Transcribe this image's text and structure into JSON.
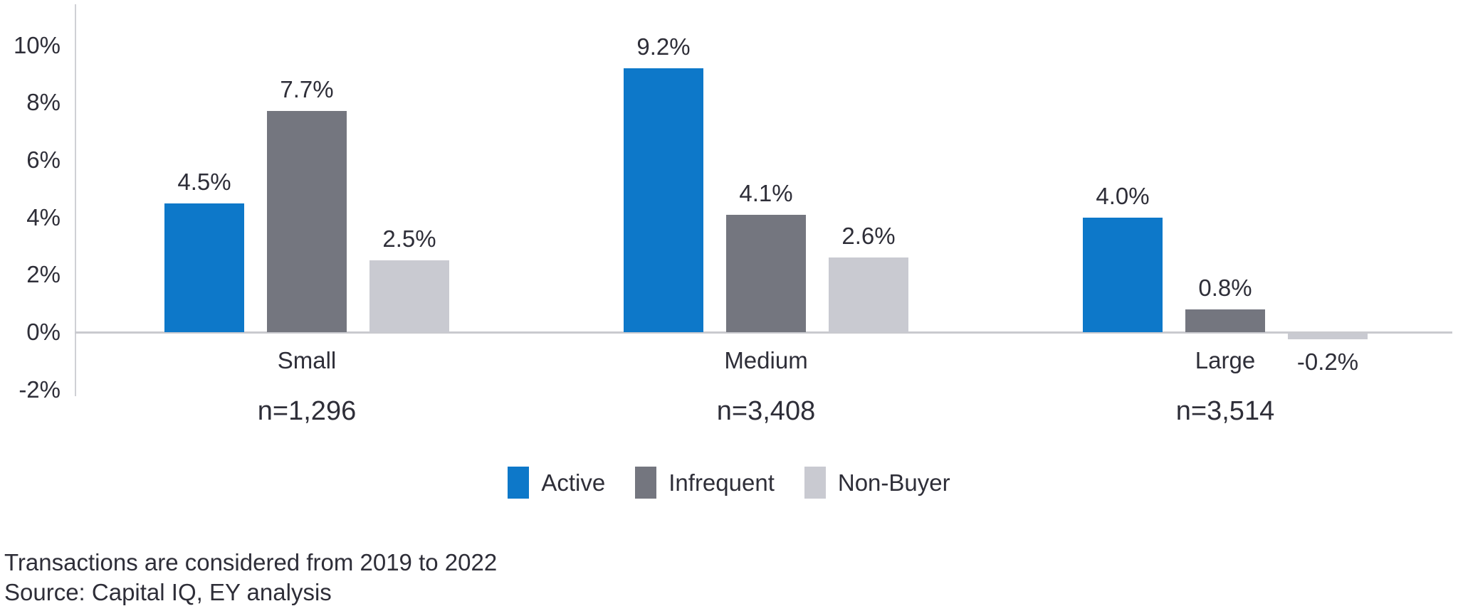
{
  "chart_data": {
    "type": "bar",
    "title": "",
    "categories": [
      "Small",
      "Medium",
      "Large"
    ],
    "group_sample_sizes": [
      "n=1,296",
      "n=3,408",
      "n=3,514"
    ],
    "series": [
      {
        "name": "Active",
        "color": "#0d78c9",
        "values": [
          4.5,
          9.2,
          4.0
        ],
        "labels": [
          "4.5%",
          "9.2%",
          "4.0%"
        ]
      },
      {
        "name": "Infrequent",
        "color": "#74767f",
        "values": [
          7.7,
          4.1,
          0.8
        ],
        "labels": [
          "7.7%",
          "4.1%",
          "0.8%"
        ]
      },
      {
        "name": "Non-Buyer",
        "color": "#c9cad1",
        "values": [
          2.5,
          2.6,
          -0.2
        ],
        "labels": [
          "2.5%",
          "2.6%",
          "-0.2%"
        ]
      }
    ],
    "y_axis": {
      "unit": "%",
      "min": -2,
      "max": 10,
      "ticks": [
        "10%",
        "8%",
        "6%",
        "4%",
        "2%",
        "0%",
        "-2%"
      ],
      "tick_values": [
        10,
        8,
        6,
        4,
        2,
        0,
        -2
      ]
    },
    "legend": {
      "position": "bottom",
      "items": [
        "Active",
        "Infrequent",
        "Non-Buyer"
      ]
    },
    "grid": false
  },
  "footnotes": {
    "line1": "Transactions are considered from 2019 to 2022",
    "line2": "Source: Capital IQ, EY analysis"
  },
  "colors": {
    "text": "#2e2e38",
    "axis_line": "#cfd0d5",
    "zero_line": "#c9cacf",
    "background": "#ffffff"
  }
}
